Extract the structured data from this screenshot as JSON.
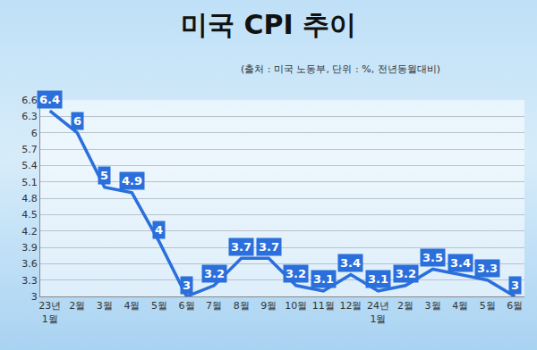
{
  "chart_data": {
    "type": "line",
    "title": "미국 CPI 추이",
    "subtitle": "(출처 : 미국 노동부, 단위 : %, 전년동월대비)",
    "categories": [
      "23년 1월",
      "2월",
      "3월",
      "4월",
      "5월",
      "6월",
      "7월",
      "8월",
      "9월",
      "10월",
      "11월",
      "12월",
      "24년 1월",
      "2월",
      "3월",
      "4월",
      "5월",
      "6월"
    ],
    "values": [
      6.4,
      6,
      5,
      4.9,
      4,
      3,
      3.2,
      3.7,
      3.7,
      3.2,
      3.1,
      3.4,
      3.1,
      3.2,
      3.5,
      3.4,
      3.3,
      3
    ],
    "color": "#2a6fdb",
    "ylim": [
      3,
      6.6
    ],
    "yticks": [
      3,
      3.3,
      3.6,
      3.9,
      4.2,
      4.5,
      4.8,
      5.1,
      5.4,
      5.7,
      6,
      6.3,
      6.6
    ],
    "grid": true,
    "data_labels": true
  }
}
